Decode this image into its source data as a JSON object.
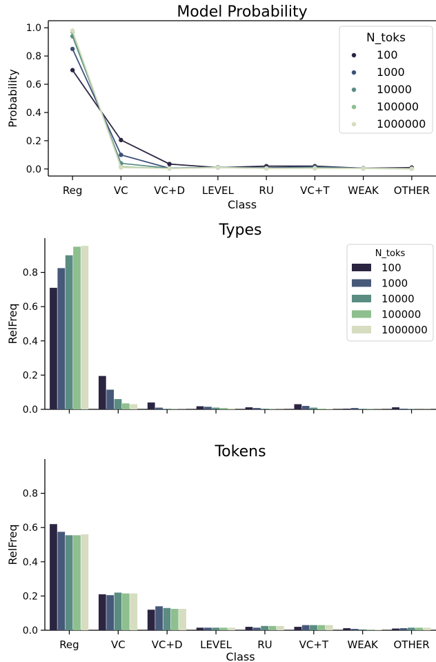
{
  "chart_data": [
    {
      "type": "line",
      "title": "Model Probability",
      "xlabel": "Class",
      "ylabel": "Probability",
      "ylim": [
        -0.05,
        1.05
      ],
      "yticks": [
        "0.0",
        "0.2",
        "0.4",
        "0.6",
        "0.8",
        "1.0"
      ],
      "categories": [
        "Reg",
        "VC",
        "VC+D",
        "LEVEL",
        "RU",
        "VC+T",
        "WEAK",
        "OTHER"
      ],
      "legend": {
        "title": "N_toks",
        "position": "top-right"
      },
      "series": [
        {
          "name": "100",
          "color": "#2b2542",
          "values": [
            0.7,
            0.205,
            0.035,
            0.01,
            0.02,
            0.02,
            0.005,
            0.01
          ]
        },
        {
          "name": "1000",
          "color": "#3c5078",
          "values": [
            0.85,
            0.1,
            0.005,
            0.012,
            0.008,
            0.015,
            0.004,
            0.003
          ]
        },
        {
          "name": "10000",
          "color": "#5a8c82",
          "values": [
            0.94,
            0.04,
            0.005,
            0.012,
            0.005,
            0.01,
            0.004,
            0.002
          ]
        },
        {
          "name": "100000",
          "color": "#8ebf8e",
          "values": [
            0.97,
            0.015,
            0.003,
            0.01,
            0.004,
            0.005,
            0.003,
            0.002
          ]
        },
        {
          "name": "1000000",
          "color": "#d6ddc0",
          "values": [
            0.98,
            0.01,
            0.003,
            0.01,
            0.004,
            0.005,
            0.003,
            0.002
          ]
        }
      ]
    },
    {
      "type": "bar",
      "title": "Types",
      "xlabel": "",
      "ylabel": "RelFreq",
      "ylim": [
        0,
        1.0
      ],
      "yticks": [
        "0.0",
        "0.2",
        "0.4",
        "0.6",
        "0.8"
      ],
      "categories": [
        "Reg",
        "VC",
        "VC+D",
        "LEVEL",
        "RU",
        "VC+T",
        "WEAK",
        "OTHER"
      ],
      "legend": {
        "title": "N_toks",
        "position": "top-right"
      },
      "series": [
        {
          "name": "100",
          "color": "#2b2542",
          "values": [
            0.71,
            0.195,
            0.04,
            0.018,
            0.012,
            0.03,
            0.004,
            0.012
          ]
        },
        {
          "name": "1000",
          "color": "#47597a",
          "values": [
            0.825,
            0.115,
            0.01,
            0.015,
            0.008,
            0.02,
            0.008,
            0.004
          ]
        },
        {
          "name": "10000",
          "color": "#5a8c82",
          "values": [
            0.9,
            0.06,
            0.003,
            0.01,
            0.004,
            0.01,
            0.003,
            0.002
          ]
        },
        {
          "name": "100000",
          "color": "#8ebf8e",
          "values": [
            0.95,
            0.035,
            0.002,
            0.008,
            0.002,
            0.004,
            0.002,
            0.001
          ]
        },
        {
          "name": "1000000",
          "color": "#d6ddc0",
          "values": [
            0.955,
            0.03,
            0.001,
            0.006,
            0.001,
            0.003,
            0.001,
            0.001
          ]
        }
      ]
    },
    {
      "type": "bar",
      "title": "Tokens",
      "xlabel": "Class",
      "ylabel": "RelFreq",
      "ylim": [
        0,
        1.0
      ],
      "yticks": [
        "0.0",
        "0.2",
        "0.4",
        "0.6",
        "0.8"
      ],
      "categories": [
        "Reg",
        "VC",
        "VC+D",
        "LEVEL",
        "RU",
        "VC+T",
        "WEAK",
        "OTHER"
      ],
      "series": [
        {
          "name": "100",
          "color": "#2b2542",
          "values": [
            0.62,
            0.21,
            0.12,
            0.015,
            0.02,
            0.02,
            0.012,
            0.01
          ]
        },
        {
          "name": "1000",
          "color": "#47597a",
          "values": [
            0.575,
            0.205,
            0.14,
            0.015,
            0.015,
            0.03,
            0.008,
            0.012
          ]
        },
        {
          "name": "10000",
          "color": "#5a8c82",
          "values": [
            0.555,
            0.22,
            0.13,
            0.015,
            0.025,
            0.03,
            0.005,
            0.015
          ]
        },
        {
          "name": "100000",
          "color": "#8ebf8e",
          "values": [
            0.555,
            0.215,
            0.125,
            0.015,
            0.025,
            0.03,
            0.004,
            0.015
          ]
        },
        {
          "name": "1000000",
          "color": "#d6ddc0",
          "values": [
            0.56,
            0.215,
            0.125,
            0.015,
            0.025,
            0.03,
            0.004,
            0.015
          ]
        }
      ]
    }
  ]
}
